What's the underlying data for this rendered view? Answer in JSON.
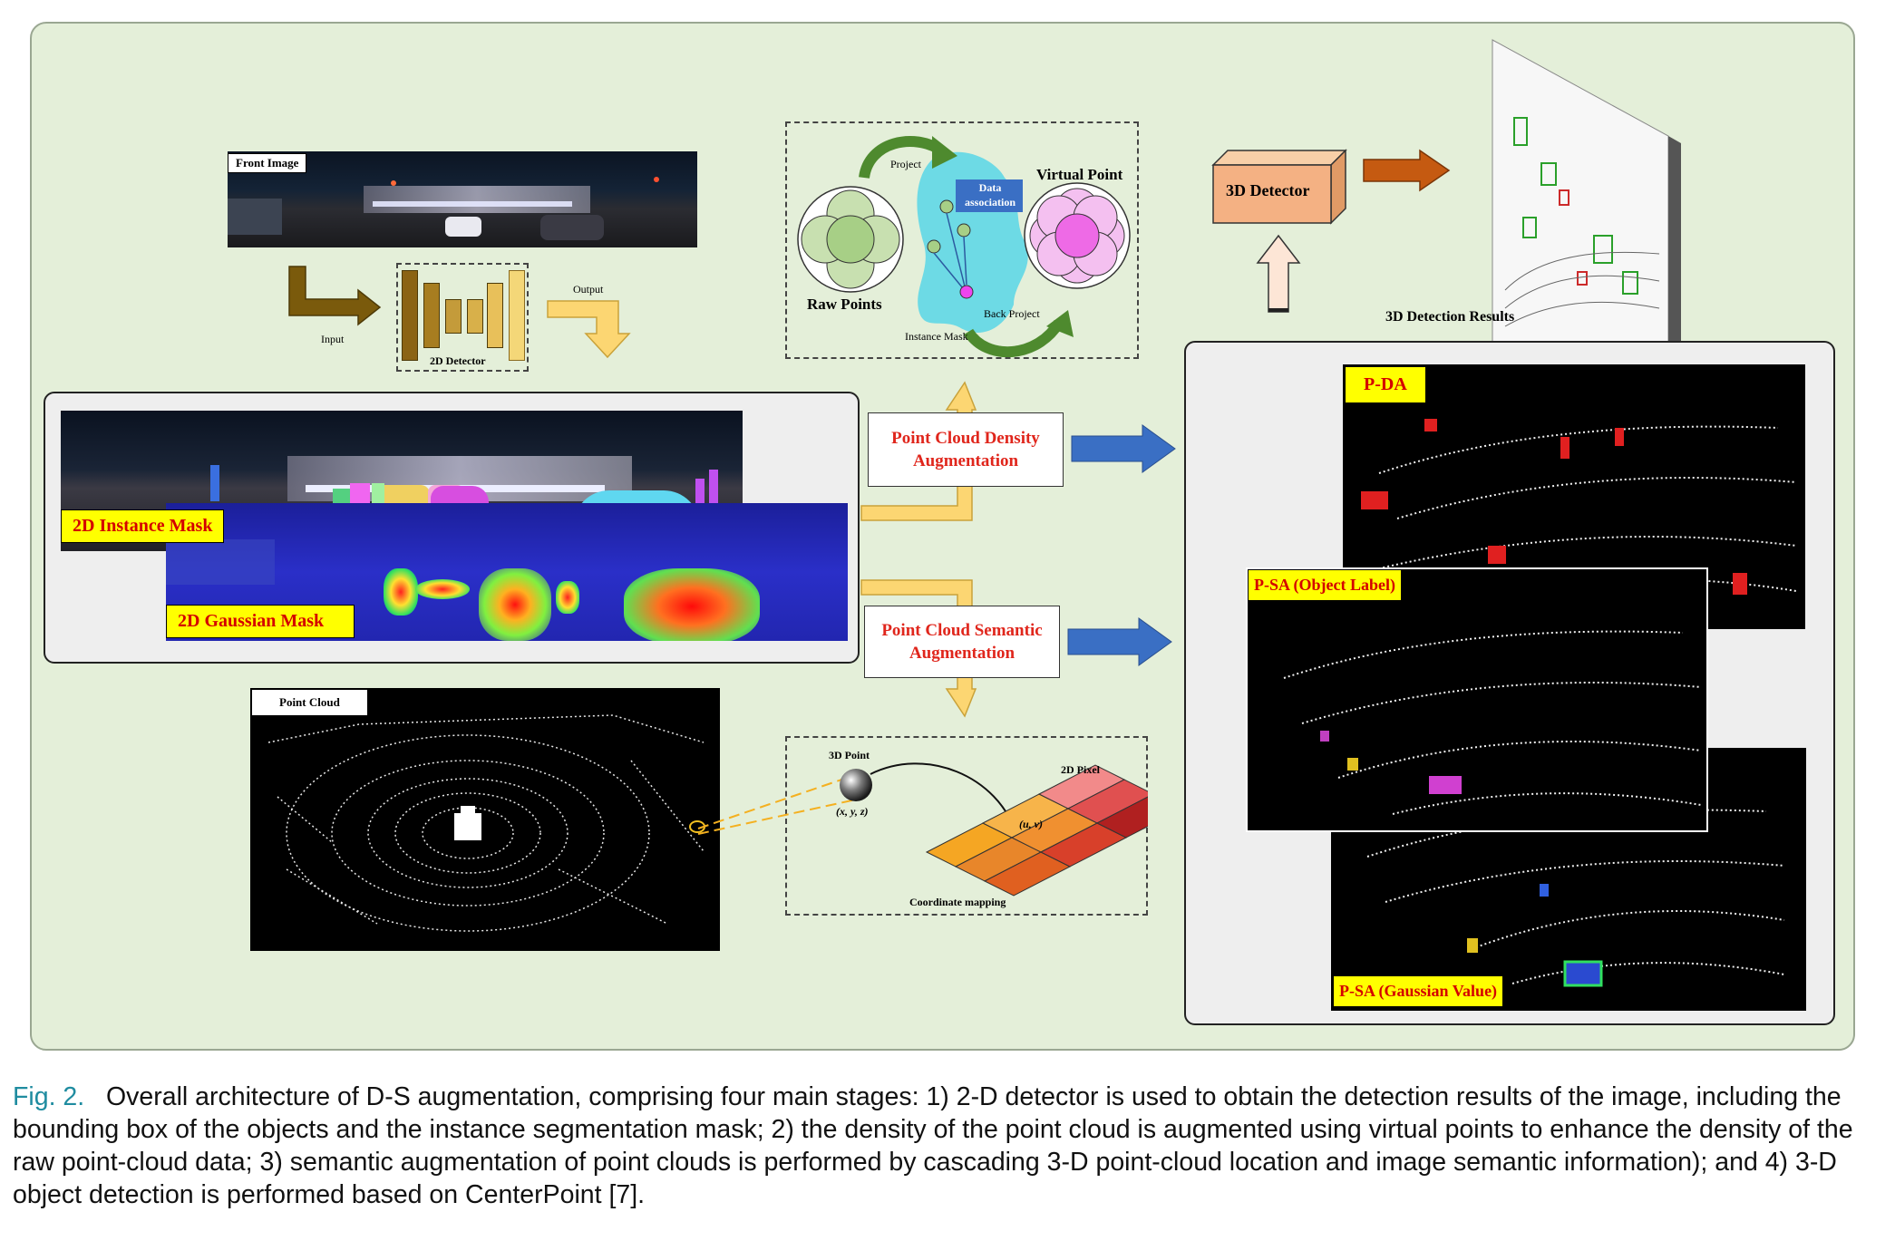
{
  "labels": {
    "front_image": "Front Image",
    "input": "Input",
    "output": "Output",
    "detector_2d": "2D Detector",
    "project": "Project",
    "data_association": "Data association",
    "virtual_point": "Virtual Point",
    "raw_points": "Raw Points",
    "instance_mask": "Instance Mask",
    "back_project": "Back Project",
    "detector_3d": "3D Detector",
    "detection_results_3d": "3D Detection Results",
    "instance_mask_2d": "2D Instance Mask",
    "gaussian_mask_2d": "2D Gaussian Mask",
    "density_aug_line1": "Point Cloud Density",
    "density_aug_line2": "Augmentation",
    "semantic_aug_line1": "Point Cloud Semantic",
    "semantic_aug_line2": "Augmentation",
    "point_cloud": "Point Cloud",
    "point_3d": "3D Point",
    "xyz": "(x, y, z)",
    "pixel_2d": "2D Pixel",
    "uv": "(u, v)",
    "coordinate_mapping": "Coordinate mapping",
    "pda": "P-DA",
    "psa_object": "P-SA (Object Label)",
    "psa_gaussian": "P-SA (Gaussian Value)"
  },
  "caption": {
    "fig": "Fig. 2.",
    "text": "Overall architecture of D-S augmentation, comprising four main stages: 1) 2-D detector is used to obtain the detection results of the image, including the bounding box of the objects and the instance segmentation mask; 2) the density of the point cloud is augmented using virtual points to enhance the density of the raw point-cloud data; 3) semantic augmentation of point clouds is performed by cascading 3-D point-cloud location and image semantic information); and 4) 3-D object detection is performed based on CenterPoint [7]."
  },
  "colors": {
    "panel_bg": "#e4efd9",
    "label_bg": "#ffff00",
    "label_text": "#d40000",
    "aug_text": "#e0261c",
    "blue_arrow": "#3a6fc4",
    "detector_box": "#f4b183",
    "yellow_arrow": "#fcd672"
  }
}
